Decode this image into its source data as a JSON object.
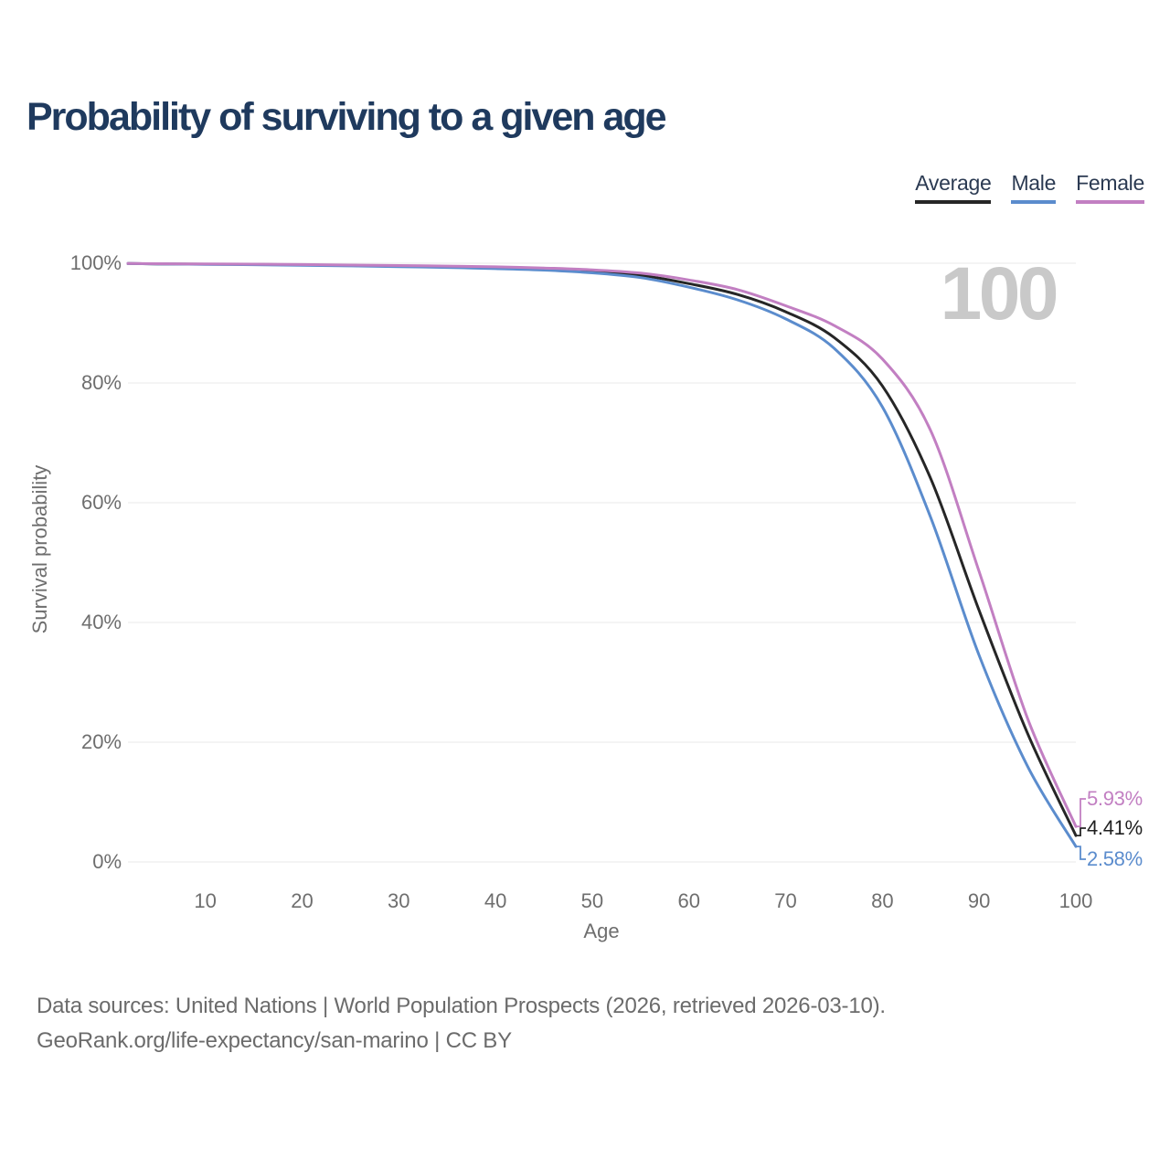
{
  "header": {
    "title": "Probability of surviving to a given age"
  },
  "legend": {
    "items": [
      {
        "label": "Average",
        "color": "#262626"
      },
      {
        "label": "Male",
        "color": "#5b8ccd"
      },
      {
        "label": "Female",
        "color": "#c27fc2"
      }
    ]
  },
  "chart_data": {
    "type": "line",
    "title": "Probability of surviving to a given age",
    "xlabel": "Age",
    "ylabel": "Survival probability",
    "watermark": "100",
    "xlim": [
      2,
      100
    ],
    "ylim": [
      0,
      100
    ],
    "x_ticks": [
      10,
      20,
      30,
      40,
      50,
      60,
      70,
      80,
      90,
      100
    ],
    "y_ticks": [
      0,
      20,
      40,
      60,
      80,
      100
    ],
    "y_tick_suffix": "%",
    "grid": "horizontal",
    "legend_position": "top-right",
    "ages": [
      0,
      5,
      10,
      15,
      20,
      25,
      30,
      35,
      40,
      45,
      50,
      55,
      60,
      65,
      70,
      75,
      80,
      85,
      90,
      95,
      100
    ],
    "series": [
      {
        "name": "Average",
        "color": "#262626",
        "end_label": "4.41%",
        "values": [
          100,
          99.9,
          99.85,
          99.8,
          99.72,
          99.63,
          99.53,
          99.42,
          99.28,
          99.05,
          98.7,
          98.0,
          96.6,
          94.8,
          91.9,
          87.6,
          79.5,
          64.0,
          42.0,
          21.5,
          4.41
        ]
      },
      {
        "name": "Male",
        "color": "#5b8ccd",
        "end_label": "2.58%",
        "values": [
          100,
          99.88,
          99.82,
          99.75,
          99.65,
          99.55,
          99.44,
          99.3,
          99.1,
          98.85,
          98.4,
          97.6,
          96.0,
          93.9,
          90.7,
          85.8,
          76.0,
          57.5,
          34.5,
          16.0,
          2.58
        ]
      },
      {
        "name": "Female",
        "color": "#c27fc2",
        "end_label": "5.93%",
        "values": [
          100,
          99.92,
          99.88,
          99.84,
          99.78,
          99.7,
          99.62,
          99.52,
          99.4,
          99.2,
          98.9,
          98.35,
          97.2,
          95.6,
          92.9,
          89.6,
          84.0,
          72.0,
          48.5,
          24.0,
          5.93
        ]
      }
    ]
  },
  "footer": {
    "line1": "Data sources: United Nations | World Population Prospects (2026, retrieved 2026-03-10).",
    "line2": "GeoRank.org/life-expectancy/san-marino | CC BY"
  }
}
